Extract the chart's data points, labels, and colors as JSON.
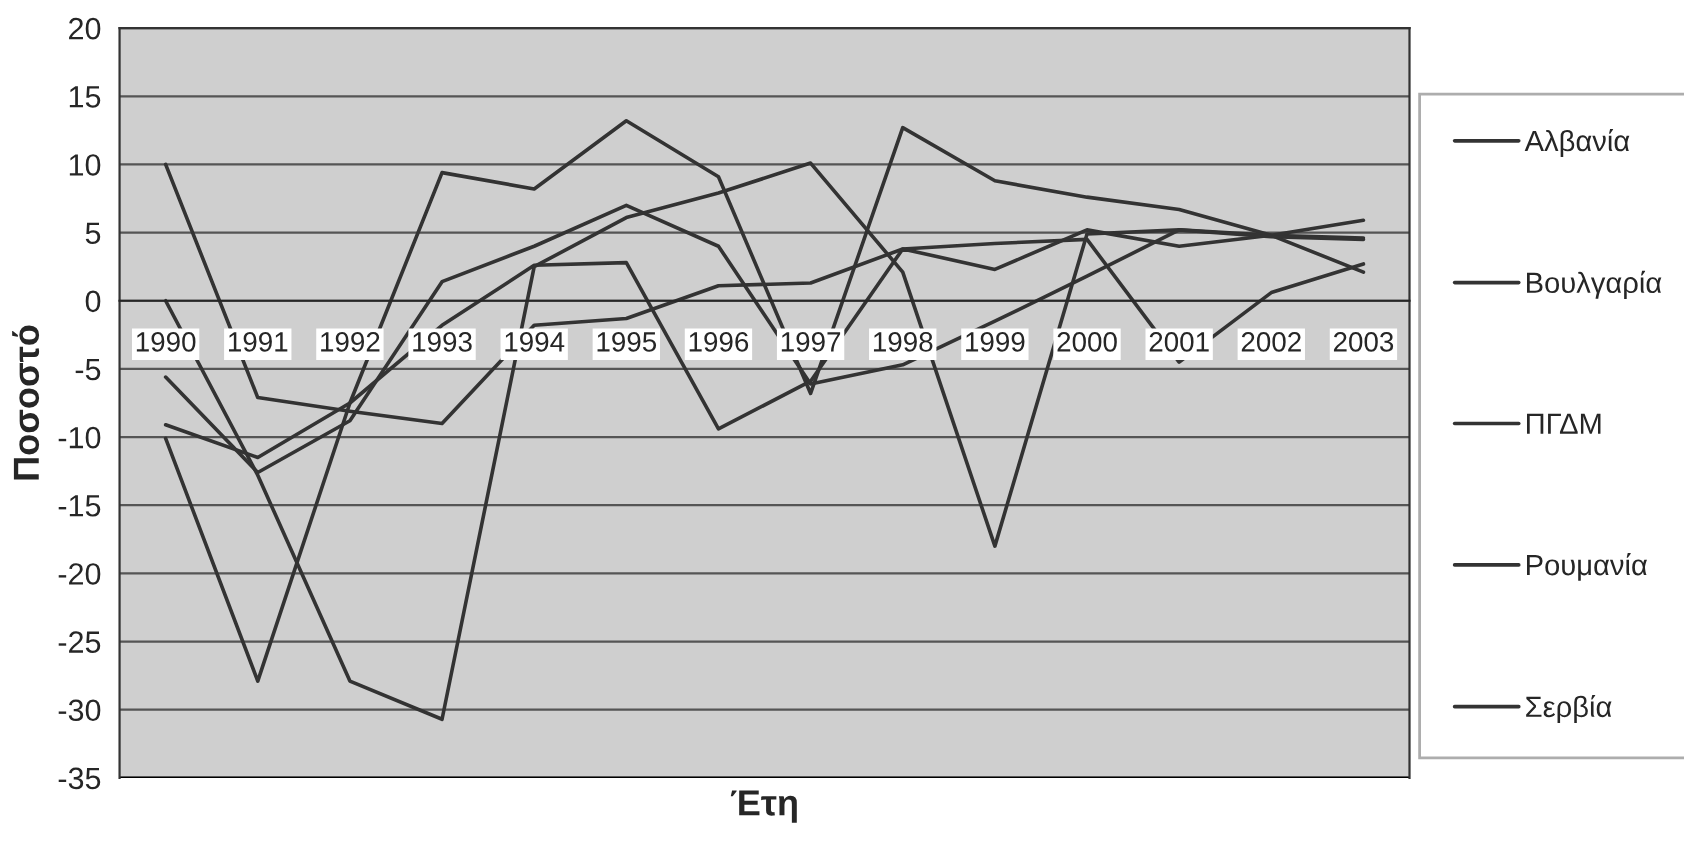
{
  "chart_data": {
    "type": "line",
    "xlabel": "Έτη",
    "ylabel": "Ποσοστό",
    "categories": [
      "1990",
      "1991",
      "1992",
      "1993",
      "1994",
      "1995",
      "1996",
      "1997",
      "1998",
      "1999",
      "2000",
      "2001",
      "2002",
      "2003"
    ],
    "series": [
      {
        "name": "Αλβανία",
        "color": "#333333",
        "values": [
          -10.1,
          -27.9,
          -7.5,
          9.4,
          8.2,
          13.2,
          9.1,
          -6.8,
          12.7,
          8.8,
          7.6,
          6.7,
          4.8,
          2.1
        ]
      },
      {
        "name": "Βουλγαρία",
        "color": "#333333",
        "values": [
          -9.1,
          -11.5,
          -7.5,
          -1.8,
          2.6,
          2.8,
          -9.4,
          -5.9,
          3.8,
          2.3,
          5.2,
          4.0,
          4.8,
          4.6
        ]
      },
      {
        "name": "ΠΓΔΜ",
        "color": "#333333",
        "values": [
          10,
          -7.1,
          -8.1,
          -9.0,
          -1.8,
          -1.3,
          1.1,
          1.3,
          3.8,
          4.2,
          4.5,
          -4.5,
          0.6,
          2.7
        ]
      },
      {
        "name": "Ρουμανία",
        "color": "#333333",
        "values": [
          -5.6,
          -12.6,
          -8.8,
          1.4,
          4.0,
          7.0,
          4.0,
          -6.1,
          -4.7,
          -1.5,
          1.8,
          5.2,
          4.8,
          5.9
        ]
      },
      {
        "name": "Σερβία",
        "color": "#333333",
        "values": [
          0,
          -12.8,
          -27.9,
          -30.7,
          2.5,
          6.1,
          7.9,
          10.1,
          2.1,
          -18,
          4.9,
          5.2,
          4.7,
          4.5
        ]
      }
    ],
    "ylim": [
      -35,
      20
    ],
    "yticks": [
      -35,
      -30,
      -25,
      -20,
      -15,
      -10,
      -5,
      0,
      5,
      10,
      15,
      20
    ],
    "grid": "y",
    "legend": "right",
    "marker": "none",
    "line_style": "solid"
  }
}
